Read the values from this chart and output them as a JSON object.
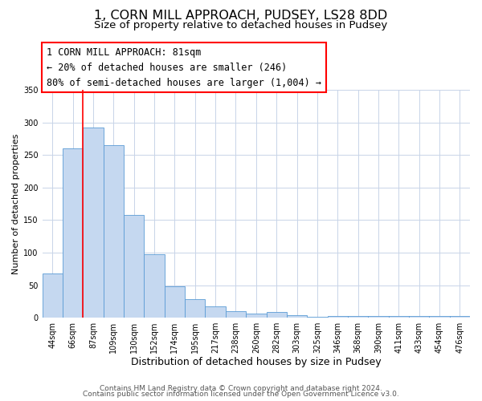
{
  "title": "1, CORN MILL APPROACH, PUDSEY, LS28 8DD",
  "subtitle": "Size of property relative to detached houses in Pudsey",
  "xlabel": "Distribution of detached houses by size in Pudsey",
  "ylabel": "Number of detached properties",
  "bar_labels": [
    "44sqm",
    "66sqm",
    "87sqm",
    "109sqm",
    "130sqm",
    "152sqm",
    "174sqm",
    "195sqm",
    "217sqm",
    "238sqm",
    "260sqm",
    "282sqm",
    "303sqm",
    "325sqm",
    "346sqm",
    "368sqm",
    "390sqm",
    "411sqm",
    "433sqm",
    "454sqm",
    "476sqm"
  ],
  "bar_values": [
    68,
    260,
    293,
    265,
    158,
    98,
    48,
    28,
    18,
    10,
    6,
    9,
    4,
    1,
    3,
    2,
    3,
    2,
    2,
    2,
    3
  ],
  "bar_color": "#c5d8f0",
  "bar_edge_color": "#5b9bd5",
  "ylim": [
    0,
    350
  ],
  "yticks": [
    0,
    50,
    100,
    150,
    200,
    250,
    300,
    350
  ],
  "vline_x_index": 2,
  "annotation_box_text": "1 CORN MILL APPROACH: 81sqm\n← 20% of detached houses are smaller (246)\n80% of semi-detached houses are larger (1,004) →",
  "footer_line1": "Contains HM Land Registry data © Crown copyright and database right 2024.",
  "footer_line2": "Contains public sector information licensed under the Open Government Licence v3.0.",
  "title_fontsize": 11.5,
  "subtitle_fontsize": 9.5,
  "xlabel_fontsize": 9,
  "ylabel_fontsize": 8,
  "tick_fontsize": 7,
  "footer_fontsize": 6.5,
  "annotation_fontsize": 8.5,
  "background_color": "#ffffff",
  "grid_color": "#c8d4e8"
}
